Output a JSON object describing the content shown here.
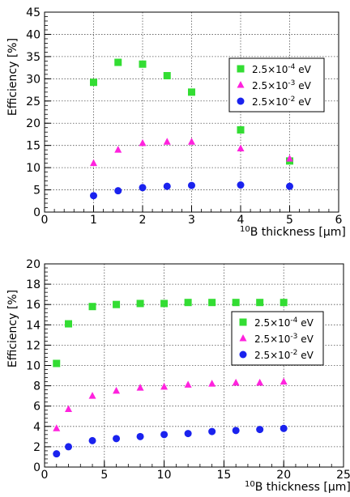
{
  "chart_data": [
    {
      "type": "scatter",
      "xlabel_sup": "10",
      "xlabel_main": "B thickness [μm]",
      "ylabel": "Efficiency [%]",
      "xlim": [
        0,
        6
      ],
      "ylim": [
        0,
        45
      ],
      "xticks": [
        0,
        1,
        2,
        3,
        4,
        5,
        6
      ],
      "yticks": [
        0,
        5,
        10,
        15,
        20,
        25,
        30,
        35,
        40,
        45
      ],
      "grid": true,
      "legend_position": "right-middle",
      "series": [
        {
          "name_base": "2.5×10",
          "name_exp": "-4",
          "name_unit": " eV",
          "marker": "square",
          "color": "#33dd33",
          "x": [
            1,
            1.5,
            2,
            2.5,
            3,
            4,
            5
          ],
          "y": [
            29.2,
            33.7,
            33.3,
            30.7,
            27,
            18.5,
            11.5
          ]
        },
        {
          "name_base": "2.5×10",
          "name_exp": "-3",
          "name_unit": " eV",
          "marker": "triangle",
          "color": "#ff22dd",
          "x": [
            1,
            1.5,
            2,
            2.5,
            3,
            4,
            5
          ],
          "y": [
            11,
            14,
            15.5,
            15.8,
            15.8,
            14.3,
            12
          ]
        },
        {
          "name_base": "2.5×10",
          "name_exp": "-2",
          "name_unit": " eV",
          "marker": "circle",
          "color": "#1a22ee",
          "x": [
            1,
            1.5,
            2,
            2.5,
            3,
            4,
            5
          ],
          "y": [
            3.7,
            4.8,
            5.5,
            5.8,
            6,
            6.1,
            5.8
          ]
        }
      ]
    },
    {
      "type": "scatter",
      "xlabel_sup": "10",
      "xlabel_main": "B thickness [μm]",
      "ylabel": "Efficiency [%]",
      "xlim": [
        0,
        25
      ],
      "ylim": [
        0,
        20
      ],
      "xticks": [
        0,
        5,
        10,
        15,
        20,
        25
      ],
      "yticks": [
        0,
        2,
        4,
        6,
        8,
        10,
        12,
        14,
        16,
        18,
        20
      ],
      "grid": true,
      "legend_position": "right-middle",
      "series": [
        {
          "name_base": "2.5×10",
          "name_exp": "-4",
          "name_unit": " eV",
          "marker": "square",
          "color": "#33dd33",
          "x": [
            1,
            2,
            4,
            6,
            8,
            10,
            12,
            14,
            16,
            18,
            20
          ],
          "y": [
            10.2,
            14.1,
            15.8,
            16,
            16.1,
            16.1,
            16.2,
            16.2,
            16.2,
            16.2,
            16.2
          ]
        },
        {
          "name_base": "2.5×10",
          "name_exp": "-3",
          "name_unit": " eV",
          "marker": "triangle",
          "color": "#ff22dd",
          "x": [
            1,
            2,
            4,
            6,
            8,
            10,
            12,
            14,
            16,
            18,
            20
          ],
          "y": [
            3.8,
            5.7,
            7,
            7.5,
            7.8,
            7.9,
            8.1,
            8.2,
            8.3,
            8.3,
            8.4
          ]
        },
        {
          "name_base": "2.5×10",
          "name_exp": "-2",
          "name_unit": " eV",
          "marker": "circle",
          "color": "#1a22ee",
          "x": [
            1,
            2,
            4,
            6,
            8,
            10,
            12,
            14,
            16,
            18,
            20
          ],
          "y": [
            1.3,
            2,
            2.6,
            2.8,
            3,
            3.2,
            3.3,
            3.5,
            3.6,
            3.7,
            3.8
          ]
        }
      ]
    }
  ]
}
